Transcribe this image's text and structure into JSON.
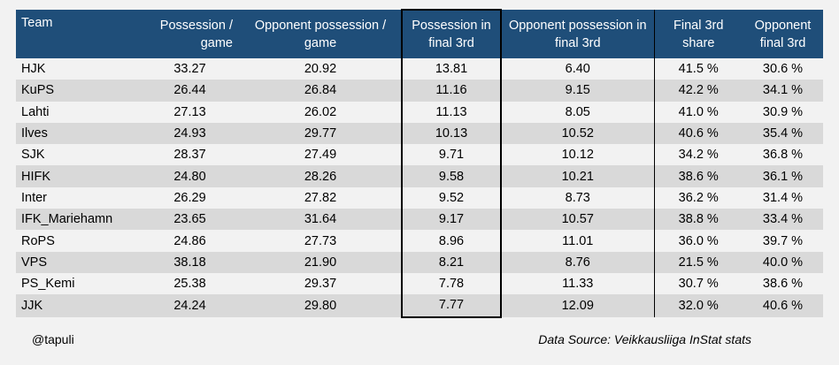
{
  "headers": {
    "team": "Team",
    "possession": "Possession / game",
    "opp_possession": "Opponent possession / game",
    "poss_final3": "Possession in final 3rd",
    "opp_poss_final3": "Opponent possession in final 3rd",
    "final3_share": "Final 3rd share",
    "opp_final3": "Opponent final 3rd"
  },
  "rows": [
    [
      "HJK",
      "33.27",
      "20.92",
      "13.81",
      "6.40",
      "41.5 %",
      "30.6 %"
    ],
    [
      "KuPS",
      "26.44",
      "26.84",
      "11.16",
      "9.15",
      "42.2 %",
      "34.1 %"
    ],
    [
      "Lahti",
      "27.13",
      "26.02",
      "11.13",
      "8.05",
      "41.0 %",
      "30.9 %"
    ],
    [
      "Ilves",
      "24.93",
      "29.77",
      "10.13",
      "10.52",
      "40.6 %",
      "35.4 %"
    ],
    [
      "SJK",
      "28.37",
      "27.49",
      "9.71",
      "10.12",
      "34.2 %",
      "36.8 %"
    ],
    [
      "HIFK",
      "24.80",
      "28.26",
      "9.58",
      "10.21",
      "38.6 %",
      "36.1 %"
    ],
    [
      "Inter",
      "26.29",
      "27.82",
      "9.52",
      "8.73",
      "36.2 %",
      "31.4 %"
    ],
    [
      "IFK_Mariehamn",
      "23.65",
      "31.64",
      "9.17",
      "10.57",
      "38.8 %",
      "33.4 %"
    ],
    [
      "RoPS",
      "24.86",
      "27.73",
      "8.96",
      "11.01",
      "36.0 %",
      "39.7 %"
    ],
    [
      "VPS",
      "38.18",
      "21.90",
      "8.21",
      "8.76",
      "21.5 %",
      "40.0 %"
    ],
    [
      "PS_Kemi",
      "25.38",
      "29.37",
      "7.78",
      "11.33",
      "30.7 %",
      "38.6 %"
    ],
    [
      "JJK",
      "24.24",
      "29.80",
      "7.77",
      "12.09",
      "32.0 %",
      "40.6 %"
    ]
  ],
  "footer": {
    "author": "@tapuli",
    "source": "Data Source: Veikkausliiga InStat stats"
  },
  "colors": {
    "header_bg": "#1f4e79",
    "header_text": "#ffffff",
    "row_alt": "#d9d9d9",
    "page_bg": "#f2f2f2"
  }
}
